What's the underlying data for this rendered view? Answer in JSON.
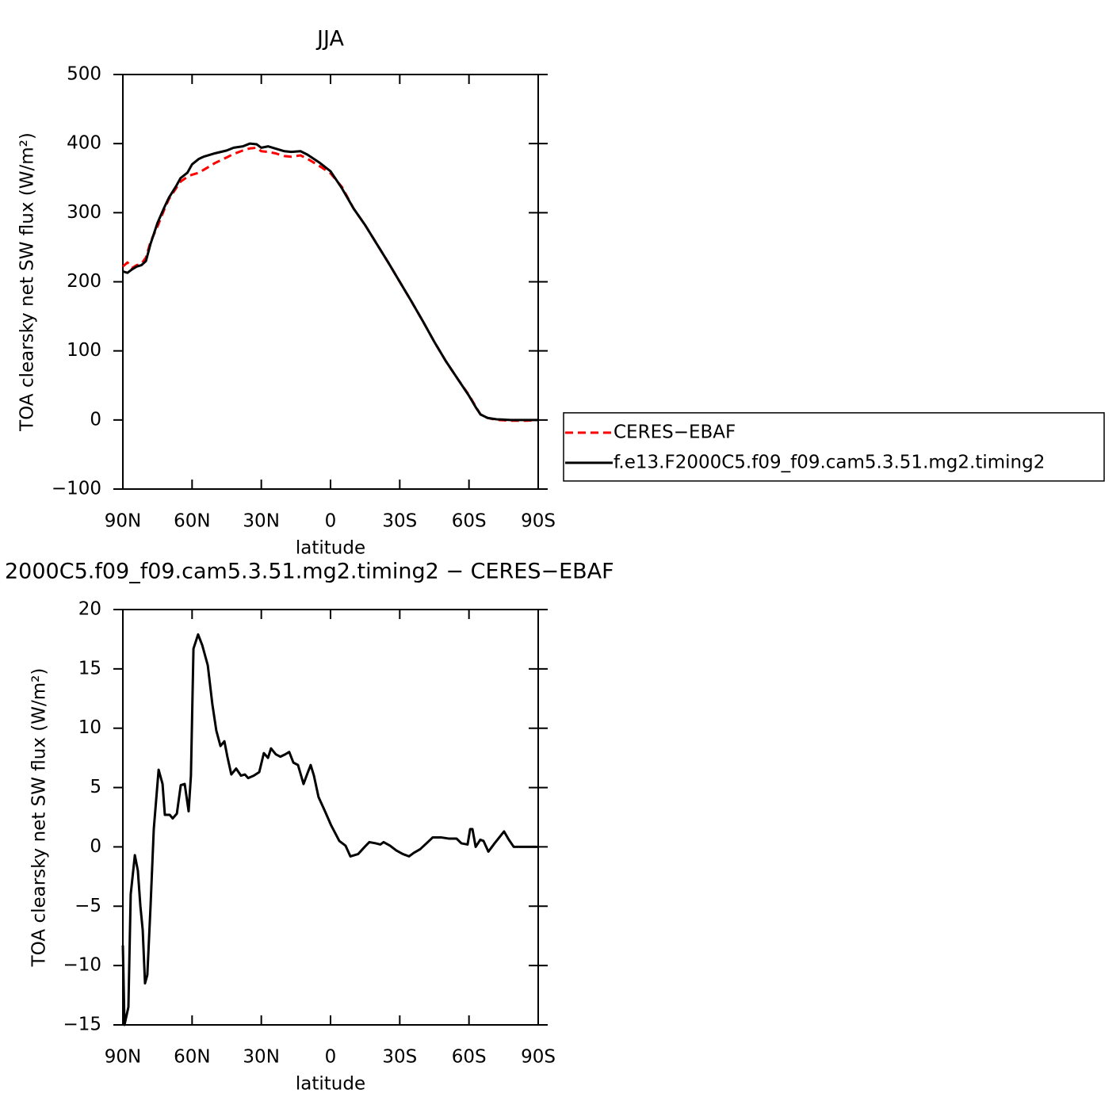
{
  "chart_data": [
    {
      "type": "line",
      "title": "JJA",
      "xlabel": "latitude",
      "ylabel": "TOA clearsky net SW flux (W/m²)",
      "x": [
        90,
        88,
        86,
        84,
        82,
        80,
        78,
        75,
        72,
        70,
        67,
        65,
        62,
        60,
        57,
        55,
        50,
        45,
        42,
        38,
        35,
        32,
        30,
        27,
        24,
        20,
        17,
        13,
        10,
        5,
        0,
        -5,
        -10,
        -15,
        -20,
        -25,
        -30,
        -35,
        -40,
        -45,
        -50,
        -55,
        -60,
        -63,
        -65,
        -68,
        -72,
        -78,
        -85,
        -90
      ],
      "series": [
        {
          "name": "CERES−EBAF",
          "color": "#ff0000",
          "dashed": true,
          "values": [
            222,
            228,
            220,
            224,
            226,
            235,
            258,
            280,
            305,
            320,
            335,
            345,
            352,
            355,
            358,
            362,
            372,
            380,
            385,
            390,
            393,
            394,
            389,
            388,
            386,
            382,
            381,
            383,
            378,
            368,
            357,
            337,
            306,
            282,
            255,
            228,
            200,
            172,
            143,
            113,
            85,
            60,
            36,
            19,
            8,
            3,
            0,
            -1,
            -1,
            0
          ]
        },
        {
          "name": "f.e13.F2000C5.f09_f09.cam5.3.51.mg2.timing2",
          "color": "#000000",
          "dashed": false,
          "values": [
            215,
            213,
            218,
            222,
            224,
            230,
            255,
            285,
            308,
            322,
            338,
            350,
            358,
            370,
            378,
            381,
            386,
            390,
            394,
            396,
            400,
            399,
            394,
            396,
            393,
            389,
            388,
            389,
            384,
            373,
            360,
            335,
            306,
            282,
            255,
            228,
            200,
            172,
            143,
            113,
            85,
            60,
            35,
            18,
            8,
            3,
            1,
            0,
            0,
            0
          ]
        }
      ],
      "xlim": [
        90,
        -90
      ],
      "xticks": [
        {
          "value": 90,
          "label": "90N"
        },
        {
          "value": 60,
          "label": "60N"
        },
        {
          "value": 30,
          "label": "30N"
        },
        0,
        {
          "value": -30,
          "label": "30S"
        },
        {
          "value": -60,
          "label": "60S"
        },
        {
          "value": -90,
          "label": "90S"
        }
      ],
      "ylim": [
        -100,
        500
      ],
      "yticks": [
        {
          "value": -100,
          "label": "−100"
        },
        0,
        100,
        200,
        300,
        400,
        500
      ],
      "legend": "outside-right"
    },
    {
      "type": "line",
      "title": "2000C5.f09_f09.cam5.3.51.mg2.timing2 − CERES−EBAF",
      "xlabel": "latitude",
      "ylabel": "TOA clearsky net SW flux (W/m²)",
      "x": [
        90,
        89.3,
        87.6,
        86.6,
        84.8,
        83.5,
        82.4,
        81.4,
        80.4,
        79.4,
        78,
        76.6,
        74.5,
        72.8,
        71.8,
        69.7,
        68.4,
        66.6,
        64.9,
        63.2,
        61.5,
        60.5,
        59.4,
        57.4,
        55.6,
        53.2,
        51.2,
        49.5,
        47.7,
        46,
        44.7,
        43,
        40.9,
        38.8,
        37.1,
        35.7,
        33.3,
        30.9,
        28.9,
        27.1,
        25.8,
        23.7,
        21.7,
        19.6,
        17.9,
        16.1,
        14.1,
        11.7,
        10,
        8.6,
        7.2,
        5.2,
        2.4,
        -0.3,
        -3.8,
        -6.5,
        -8.6,
        -12,
        -14.8,
        -16.8,
        -19.6,
        -21.6,
        -23,
        -25.8,
        -28.5,
        -31.3,
        -34,
        -36.1,
        -38.8,
        -41.6,
        -44.3,
        -47.8,
        -51.2,
        -54.6,
        -56.7,
        -59.4,
        -60.5,
        -61.5,
        -62.9,
        -64.9,
        -66.3,
        -68.4,
        -71.1,
        -75.2,
        -77.3,
        -79.4,
        -83.5,
        -90
      ],
      "values": [
        -8.3,
        -15,
        -13.5,
        -4,
        -0.7,
        -2,
        -5,
        -7,
        -11.5,
        -10.8,
        -5,
        1.5,
        6.5,
        5.3,
        2.7,
        2.7,
        2.4,
        2.8,
        5.2,
        5.3,
        3,
        6,
        16.7,
        17.9,
        17,
        15.3,
        12,
        9.8,
        8.5,
        8.9,
        7.6,
        6.1,
        6.6,
        6,
        6.1,
        5.8,
        6,
        6.3,
        7.9,
        7.5,
        8.3,
        7.8,
        7.6,
        7.8,
        8,
        7.1,
        6.9,
        5.3,
        6.2,
        6.9,
        6,
        4.2,
        3,
        1.8,
        0.5,
        0.1,
        -0.8,
        -0.6,
        0,
        0.4,
        0.3,
        0.2,
        0.4,
        0.1,
        -0.3,
        -0.6,
        -0.8,
        -0.5,
        -0.2,
        0.3,
        0.8,
        0.8,
        0.7,
        0.7,
        0.3,
        0.2,
        1.5,
        1.5,
        0,
        0.6,
        0.5,
        -0.4,
        0.3,
        1.3,
        0.6,
        0,
        0,
        0
      ],
      "color": "#000000",
      "xlim": [
        90,
        -90
      ],
      "xticks": [
        {
          "value": 90,
          "label": "90N"
        },
        {
          "value": 60,
          "label": "60N"
        },
        {
          "value": 30,
          "label": "30N"
        },
        0,
        {
          "value": -30,
          "label": "30S"
        },
        {
          "value": -60,
          "label": "60S"
        },
        {
          "value": -90,
          "label": "90S"
        }
      ],
      "ylim": [
        -15,
        20
      ],
      "yticks": [
        {
          "value": -15,
          "label": "−15"
        },
        {
          "value": -10,
          "label": "−10"
        },
        {
          "value": -5,
          "label": "−5"
        },
        0,
        5,
        10,
        15,
        20
      ]
    }
  ]
}
